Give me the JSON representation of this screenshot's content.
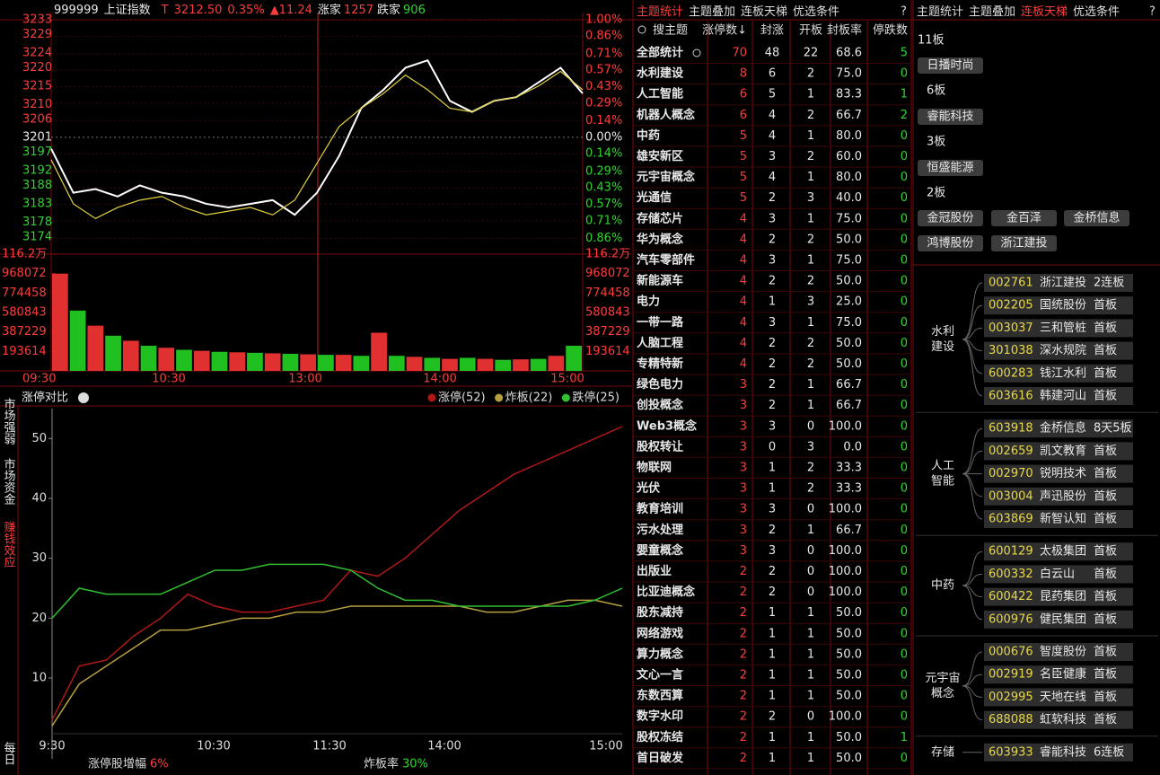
{
  "index_chart": {
    "header": {
      "code": "999999",
      "name": "上证指数",
      "t": "T",
      "price": "3212.50",
      "pct": "0.35%",
      "change": "▲11.24",
      "up_label": "涨家",
      "up": "1257",
      "down_label": "跌家",
      "down": "906"
    },
    "ylim": [
      3172,
      3235
    ],
    "yticks": [
      3233,
      3229,
      3224,
      3220,
      3215,
      3210,
      3206,
      3201,
      3197,
      3192,
      3188,
      3183,
      3178,
      3174
    ],
    "y2lim": [
      -0.91,
      1.06
    ],
    "y2ticks": [
      {
        "value": 1.0,
        "label": "1.00%"
      },
      {
        "value": 0.86,
        "label": "0.86%"
      },
      {
        "value": 0.71,
        "label": "0.71%"
      },
      {
        "value": 0.57,
        "label": "0.57%"
      },
      {
        "value": 0.43,
        "label": "0.43%"
      },
      {
        "value": 0.29,
        "label": "0.29%"
      },
      {
        "value": 0.14,
        "label": "0.14%"
      },
      {
        "value": 0,
        "label": "0.00%"
      },
      {
        "value": -0.14,
        "label": "0.14%"
      },
      {
        "value": -0.29,
        "label": "0.29%"
      },
      {
        "value": -0.43,
        "label": "0.43%"
      },
      {
        "value": -0.57,
        "label": "0.57%"
      },
      {
        "value": -0.71,
        "label": "0.71%"
      },
      {
        "value": -0.86,
        "label": "0.86%"
      }
    ],
    "series": [
      {
        "color": "#ffffff",
        "values": [
          3198,
          3186,
          3187,
          3185,
          3188,
          3186,
          3185,
          3183,
          3182,
          3183,
          3184,
          3180,
          3186,
          3196,
          3209,
          3214,
          3220,
          3222,
          3211,
          3208,
          3211,
          3212,
          3216,
          3220,
          3213
        ]
      },
      {
        "color": "#e0d040",
        "values": [
          3195,
          3183,
          3179,
          3182,
          3184,
          3185,
          3182,
          3180,
          3181,
          3182,
          3180,
          3184,
          3194,
          3204,
          3209,
          3213,
          3218,
          3214,
          3209,
          3208,
          3211,
          3212,
          3215,
          3219,
          3214
        ]
      }
    ],
    "volume": {
      "ylim": [
        0,
        1162000
      ],
      "yticks": [
        {
          "value": 1162000,
          "label": "116.2万"
        },
        968072,
        774458,
        580843,
        387229,
        193614
      ],
      "up_color": "#e03030",
      "down_color": "#20c020",
      "values": [
        968000,
        600000,
        450000,
        350000,
        300000,
        250000,
        230000,
        210000,
        200000,
        190000,
        185000,
        180000,
        175000,
        170000,
        165000,
        160000,
        160000,
        150000,
        380000,
        150000,
        140000,
        130000,
        120000,
        130000,
        120000,
        110000,
        115000,
        120000,
        150000,
        250000
      ]
    },
    "xticks": [
      "09:30",
      "10:30",
      "13:00",
      "14:00",
      "15:00"
    ]
  },
  "limit_chart": {
    "title": "涨停对比",
    "ylim": [
      -3.5,
      55
    ],
    "yticks": [
      10,
      20,
      30,
      40,
      50
    ],
    "xticks": [
      "9:30",
      "10:30",
      "11:30",
      "14:00",
      "15:00"
    ],
    "series": [
      {
        "name": "涨停(52)",
        "color": "#b01818",
        "values": [
          3,
          12,
          13,
          17,
          20,
          24,
          22,
          21,
          21,
          22,
          23,
          28,
          27,
          30,
          34,
          38,
          41,
          44,
          46,
          48,
          50,
          52
        ]
      },
      {
        "name": "炸板(22)",
        "color": "#b8a040",
        "values": [
          2,
          9,
          12,
          15,
          18,
          18,
          19,
          20,
          20,
          21,
          21,
          22,
          22,
          22,
          22,
          22,
          21,
          21,
          22,
          23,
          23,
          22
        ]
      },
      {
        "name": "跌停(25)",
        "color": "#30c030",
        "values": [
          20,
          25,
          24,
          24,
          24,
          26,
          28,
          28,
          29,
          29,
          29,
          28,
          25,
          23,
          23,
          22,
          22,
          22,
          22,
          22,
          23,
          25
        ]
      }
    ],
    "footer": [
      {
        "label": "涨停股增幅",
        "value": "6%"
      },
      {
        "label": "炸板率",
        "value": "30%"
      }
    ]
  },
  "side_tabs": [
    "市场强弱",
    "市场资金",
    "赚钱效应",
    "每日"
  ],
  "theme_table": {
    "tabs": [
      "主题统计",
      "主题叠加",
      "连板天梯",
      "优选条件"
    ],
    "help": "?",
    "columns": [
      "搜主题",
      "涨停数↓",
      "封涨",
      "开板",
      "封板率",
      "停跌数"
    ],
    "rows": [
      [
        "全部统计",
        "70",
        "48",
        "22",
        "68.6",
        "5"
      ],
      [
        "水利建设",
        "8",
        "6",
        "2",
        "75.0",
        "0"
      ],
      [
        "人工智能",
        "6",
        "5",
        "1",
        "83.3",
        "1"
      ],
      [
        "机器人概念",
        "6",
        "4",
        "2",
        "66.7",
        "2"
      ],
      [
        "中药",
        "5",
        "4",
        "1",
        "80.0",
        "0"
      ],
      [
        "雄安新区",
        "5",
        "3",
        "2",
        "60.0",
        "0"
      ],
      [
        "元宇宙概念",
        "5",
        "4",
        "1",
        "80.0",
        "0"
      ],
      [
        "光通信",
        "5",
        "2",
        "3",
        "40.0",
        "0"
      ],
      [
        "存储芯片",
        "4",
        "3",
        "1",
        "75.0",
        "0"
      ],
      [
        "华为概念",
        "4",
        "2",
        "2",
        "50.0",
        "0"
      ],
      [
        "汽车零部件",
        "4",
        "3",
        "1",
        "75.0",
        "0"
      ],
      [
        "新能源车",
        "4",
        "2",
        "2",
        "50.0",
        "0"
      ],
      [
        "电力",
        "4",
        "1",
        "3",
        "25.0",
        "0"
      ],
      [
        "一带一路",
        "4",
        "3",
        "1",
        "75.0",
        "0"
      ],
      [
        "人脑工程",
        "4",
        "2",
        "2",
        "50.0",
        "0"
      ],
      [
        "专精特新",
        "4",
        "2",
        "2",
        "50.0",
        "0"
      ],
      [
        "绿色电力",
        "3",
        "2",
        "1",
        "66.7",
        "0"
      ],
      [
        "创投概念",
        "3",
        "2",
        "1",
        "66.7",
        "0"
      ],
      [
        "Web3概念",
        "3",
        "3",
        "0",
        "100.0",
        "0"
      ],
      [
        "股权转让",
        "3",
        "0",
        "3",
        "0.0",
        "0"
      ],
      [
        "物联网",
        "3",
        "1",
        "2",
        "33.3",
        "0"
      ],
      [
        "光伏",
        "3",
        "1",
        "2",
        "33.3",
        "0"
      ],
      [
        "教育培训",
        "3",
        "3",
        "0",
        "100.0",
        "0"
      ],
      [
        "污水处理",
        "3",
        "2",
        "1",
        "66.7",
        "0"
      ],
      [
        "婴童概念",
        "3",
        "3",
        "0",
        "100.0",
        "0"
      ],
      [
        "出版业",
        "2",
        "2",
        "0",
        "100.0",
        "0"
      ],
      [
        "比亚迪概念",
        "2",
        "2",
        "0",
        "100.0",
        "0"
      ],
      [
        "股东减持",
        "2",
        "1",
        "1",
        "50.0",
        "0"
      ],
      [
        "网络游戏",
        "2",
        "1",
        "1",
        "50.0",
        "0"
      ],
      [
        "算力概念",
        "2",
        "1",
        "1",
        "50.0",
        "0"
      ],
      [
        "文心一言",
        "2",
        "1",
        "1",
        "50.0",
        "0"
      ],
      [
        "东数西算",
        "2",
        "1",
        "1",
        "50.0",
        "0"
      ],
      [
        "数字水印",
        "2",
        "2",
        "0",
        "100.0",
        "0"
      ],
      [
        "股权冻结",
        "2",
        "1",
        "1",
        "50.0",
        "1"
      ],
      [
        "首日破发",
        "2",
        "1",
        "1",
        "50.0",
        "0"
      ]
    ]
  },
  "ladder": {
    "tabs": [
      "主题统计",
      "主题叠加",
      "连板天梯",
      "优选条件"
    ],
    "help": "?",
    "levels": [
      {
        "label": "11板",
        "stocks": [
          "日播时尚"
        ]
      },
      {
        "label": "6板",
        "stocks": [
          "睿能科技"
        ]
      },
      {
        "label": "3板",
        "stocks": [
          "恒盛能源"
        ]
      },
      {
        "label": "2板",
        "stocks": [
          "金冠股份",
          "金百泽",
          "金桥信息",
          "鸿博股份",
          "浙江建投"
        ]
      }
    ]
  },
  "tree": {
    "groups": [
      {
        "label": [
          "水利",
          "建设"
        ],
        "items": [
          [
            "002761",
            "浙江建投",
            "2连板"
          ],
          [
            "002205",
            "国统股份",
            "首板"
          ],
          [
            "003037",
            "三和管桩",
            "首板"
          ],
          [
            "301038",
            "深水规院",
            "首板"
          ],
          [
            "600283",
            "钱江水利",
            "首板"
          ],
          [
            "603616",
            "韩建河山",
            "首板"
          ]
        ]
      },
      {
        "label": [
          "人工",
          "智能"
        ],
        "items": [
          [
            "603918",
            "金桥信息",
            "8天5板"
          ],
          [
            "002659",
            "凯文教育",
            "首板"
          ],
          [
            "002970",
            "锐明技术",
            "首板"
          ],
          [
            "003004",
            "声迅股份",
            "首板"
          ],
          [
            "603869",
            "新智认知",
            "首板"
          ]
        ]
      },
      {
        "label": [
          "中药"
        ],
        "items": [
          [
            "600129",
            "太极集团",
            "首板"
          ],
          [
            "600332",
            "白云山",
            "首板"
          ],
          [
            "600422",
            "昆药集团",
            "首板"
          ],
          [
            "600976",
            "健民集团",
            "首板"
          ]
        ]
      },
      {
        "label": [
          "元宇宙",
          "概念"
        ],
        "items": [
          [
            "000676",
            "智度股份",
            "首板"
          ],
          [
            "002919",
            "名臣健康",
            "首板"
          ],
          [
            "002995",
            "天地在线",
            "首板"
          ],
          [
            "688088",
            "虹软科技",
            "首板"
          ]
        ]
      },
      {
        "label": [
          "存储"
        ],
        "items": [
          [
            "603933",
            "睿能科技",
            "6连板"
          ]
        ]
      }
    ]
  }
}
